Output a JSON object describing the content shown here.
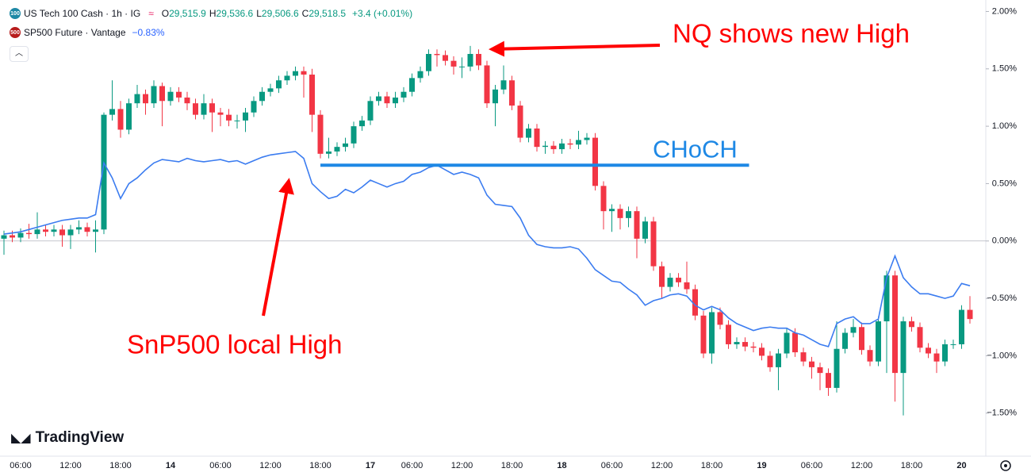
{
  "chart_data": {
    "type": "candlestick",
    "header": {
      "main": "US Tech 100 Cash · 1h · IG",
      "main_logo": "100",
      "ohlc": [
        {
          "label": "O",
          "value": "29,515.9"
        },
        {
          "label": "H",
          "value": "29,536.6"
        },
        {
          "label": "L",
          "value": "29,506.6"
        },
        {
          "label": "C",
          "value": "29,518.5"
        }
      ],
      "change": "+3.4 (+0.01%)",
      "second": "SP500 Future · Vantage",
      "second_logo": "500",
      "second_change": "−0.83%"
    },
    "brand": "TradingView",
    "annotations": [
      "NQ shows new High",
      "SnP500 local High"
    ],
    "levels": [
      {
        "text": "CHoCH",
        "value": 0.66,
        "color": "#1e88e5"
      }
    ],
    "ylim": [
      -1.875,
      2.1
    ],
    "yticks": [
      {
        "value": 2,
        "label": "2.00%"
      },
      {
        "value": 1.5,
        "label": "1.50%"
      },
      {
        "value": 1,
        "label": "1.00%"
      },
      {
        "value": 0.5,
        "label": "0.50%"
      },
      {
        "value": 0,
        "label": "0.00%"
      },
      {
        "value": -0.5,
        "label": "−0.50%"
      },
      {
        "value": -1,
        "label": "−1.00%"
      },
      {
        "value": -1.5,
        "label": "−1.50%"
      }
    ],
    "categories": [
      null,
      null,
      "06:00",
      null,
      null,
      null,
      null,
      null,
      "12:00",
      null,
      null,
      null,
      null,
      null,
      "18:00",
      null,
      null,
      null,
      null,
      null,
      "14",
      null,
      null,
      null,
      null,
      null,
      "06:00",
      null,
      null,
      null,
      null,
      null,
      "12:00",
      null,
      null,
      null,
      null,
      null,
      "18:00",
      null,
      null,
      null,
      null,
      null,
      "17",
      null,
      null,
      null,
      null,
      "06:00",
      null,
      null,
      null,
      null,
      null,
      "12:00",
      null,
      null,
      null,
      null,
      null,
      "18:00",
      null,
      null,
      null,
      null,
      null,
      "18",
      null,
      null,
      null,
      null,
      null,
      "06:00",
      null,
      null,
      null,
      null,
      null,
      "12:00",
      null,
      null,
      null,
      null,
      null,
      "18:00",
      null,
      null,
      null,
      null,
      null,
      "19",
      null,
      null,
      null,
      null,
      null,
      "06:00",
      null,
      null,
      null,
      null,
      null,
      "12:00",
      null,
      null,
      null,
      null,
      null,
      "18:00",
      null,
      null,
      null,
      null,
      null,
      "20",
      null
    ],
    "series": [
      {
        "name": "US Tech 100 Cash",
        "type": "candlestick",
        "up_color": "#089981",
        "down_color": "#f23645",
        "open": [
          0.02,
          0.05,
          0.03,
          0.07,
          0.06,
          0.1,
          0.08,
          0.1,
          0.05,
          0.1,
          0.12,
          0.08,
          0.1,
          1.1,
          1.15,
          0.97,
          1.2,
          1.28,
          1.2,
          1.35,
          1.22,
          1.3,
          1.25,
          1.2,
          1.1,
          1.2,
          1.12,
          1.1,
          1.05,
          1.05,
          1.12,
          1.22,
          1.3,
          1.33,
          1.4,
          1.44,
          1.48,
          1.45,
          1.1,
          0.76,
          0.78,
          0.82,
          0.85,
          1.0,
          1.05,
          1.22,
          1.26,
          1.2,
          1.25,
          1.3,
          1.42,
          1.48,
          1.63,
          1.62,
          1.57,
          1.52,
          1.52,
          1.63,
          1.53,
          1.2,
          1.32,
          1.4,
          1.18,
          0.9,
          0.98,
          0.82,
          0.83,
          0.8,
          0.85,
          0.84,
          0.88,
          0.9,
          0.48,
          0.26,
          0.28,
          0.2,
          0.26,
          0.02,
          0.17,
          -0.22,
          -0.4,
          -0.32,
          -0.36,
          -0.42,
          -0.65,
          -0.98,
          -0.62,
          -0.73,
          -0.9,
          -0.88,
          -0.92,
          -0.93,
          -1.0,
          -1.1,
          -0.98,
          -0.8,
          -0.97,
          -1.05,
          -1.1,
          -1.15,
          -1.28,
          -0.94,
          -0.8,
          -0.75,
          -0.95,
          -1.05,
          -0.7,
          -0.3,
          -1.15,
          -0.7,
          -0.75,
          -0.93,
          -0.98,
          -1.05,
          -0.9,
          -0.9,
          -0.6
        ],
        "high": [
          0.09,
          0.09,
          0.11,
          0.15,
          0.25,
          0.14,
          0.14,
          0.14,
          0.14,
          0.18,
          0.16,
          0.18,
          1.12,
          1.4,
          1.22,
          1.24,
          1.36,
          1.32,
          1.4,
          1.38,
          1.34,
          1.34,
          1.3,
          1.24,
          1.28,
          1.24,
          1.16,
          1.15,
          1.1,
          1.16,
          1.26,
          1.34,
          1.37,
          1.44,
          1.48,
          1.52,
          1.52,
          1.5,
          1.14,
          0.9,
          0.86,
          0.9,
          1.04,
          1.09,
          1.26,
          1.3,
          1.3,
          1.3,
          1.34,
          1.46,
          1.52,
          1.67,
          1.67,
          1.66,
          1.61,
          1.6,
          1.7,
          1.67,
          1.57,
          1.36,
          1.53,
          1.44,
          1.22,
          1.02,
          1.02,
          0.87,
          0.87,
          0.89,
          0.89,
          0.96,
          0.94,
          0.94,
          0.52,
          0.32,
          0.32,
          0.3,
          0.3,
          0.21,
          0.21,
          -0.18,
          -0.28,
          -0.28,
          -0.18,
          -0.38,
          -0.61,
          -0.58,
          -0.58,
          -0.69,
          -0.84,
          -0.84,
          -0.88,
          -0.89,
          -0.96,
          -0.94,
          -0.76,
          -0.76,
          -0.93,
          -1.01,
          -1.06,
          -1.11,
          -0.7,
          -0.76,
          -0.68,
          -0.71,
          -0.91,
          -0.66,
          -0.26,
          -0.26,
          -0.66,
          -0.66,
          -0.71,
          -0.89,
          -0.94,
          -0.86,
          -0.86,
          -0.56,
          -0.48
        ],
        "low": [
          -0.12,
          -0.01,
          -0.01,
          0.02,
          0.02,
          0.04,
          0.04,
          -0.05,
          -0.07,
          0.06,
          0.04,
          -0.1,
          0.06,
          1.05,
          0.9,
          0.93,
          1.16,
          1.1,
          1.16,
          1.0,
          1.18,
          1.21,
          1.14,
          1.06,
          1.06,
          0.95,
          1.0,
          1.0,
          0.98,
          0.95,
          1.08,
          1.18,
          1.26,
          1.29,
          1.36,
          1.4,
          1.25,
          0.95,
          0.72,
          0.72,
          0.74,
          0.78,
          0.81,
          0.96,
          1.01,
          1.18,
          1.16,
          1.16,
          1.21,
          1.26,
          1.38,
          1.44,
          1.52,
          1.53,
          1.45,
          1.42,
          1.48,
          1.49,
          1.16,
          1.0,
          1.28,
          1.14,
          0.86,
          0.86,
          0.78,
          0.76,
          0.76,
          0.76,
          0.8,
          0.8,
          0.84,
          0.44,
          0.1,
          0.08,
          0.1,
          0.12,
          -0.15,
          -0.02,
          -0.26,
          -0.5,
          -0.44,
          -0.4,
          -0.46,
          -0.69,
          -1.02,
          -1.07,
          -0.77,
          -0.94,
          -0.94,
          -0.96,
          -0.97,
          -1.04,
          -1.14,
          -1.3,
          -1.02,
          -1.01,
          -1.09,
          -1.2,
          -1.3,
          -1.35,
          -1.32,
          -0.98,
          -0.84,
          -0.99,
          -1.09,
          -1.09,
          -1.15,
          -1.4,
          -1.52,
          -0.79,
          -0.97,
          -1.02,
          -1.15,
          -1.09,
          -0.94,
          -0.94,
          -0.72
        ],
        "close": [
          0.05,
          0.03,
          0.07,
          0.06,
          0.1,
          0.08,
          0.1,
          0.05,
          0.1,
          0.12,
          0.08,
          0.1,
          1.1,
          1.15,
          0.97,
          1.2,
          1.28,
          1.2,
          1.35,
          1.22,
          1.3,
          1.25,
          1.2,
          1.1,
          1.2,
          1.12,
          1.1,
          1.05,
          1.05,
          1.12,
          1.22,
          1.3,
          1.33,
          1.4,
          1.44,
          1.48,
          1.45,
          1.1,
          0.76,
          0.78,
          0.82,
          0.85,
          1.0,
          1.05,
          1.22,
          1.26,
          1.2,
          1.25,
          1.3,
          1.42,
          1.48,
          1.63,
          1.62,
          1.57,
          1.52,
          1.52,
          1.63,
          1.53,
          1.2,
          1.32,
          1.4,
          1.18,
          0.9,
          0.98,
          0.82,
          0.83,
          0.8,
          0.85,
          0.84,
          0.88,
          0.9,
          0.48,
          0.26,
          0.28,
          0.2,
          0.26,
          0.02,
          0.17,
          -0.22,
          -0.4,
          -0.32,
          -0.36,
          -0.42,
          -0.65,
          -0.98,
          -0.62,
          -0.73,
          -0.9,
          -0.88,
          -0.92,
          -0.93,
          -1.0,
          -1.1,
          -0.98,
          -0.8,
          -0.97,
          -1.05,
          -1.1,
          -1.15,
          -1.28,
          -0.94,
          -0.8,
          -0.75,
          -0.95,
          -1.05,
          -0.7,
          -0.3,
          -1.15,
          -0.7,
          -0.75,
          -0.93,
          -0.98,
          -1.05,
          -0.9,
          -0.9,
          -0.6,
          -0.68
        ]
      },
      {
        "name": "SP500 Future",
        "type": "line",
        "color": "#3b7cf0",
        "values": [
          0.06,
          0.07,
          0.08,
          0.1,
          0.12,
          0.14,
          0.16,
          0.18,
          0.19,
          0.2,
          0.2,
          0.23,
          0.68,
          0.55,
          0.37,
          0.5,
          0.55,
          0.62,
          0.68,
          0.71,
          0.7,
          0.69,
          0.72,
          0.7,
          0.69,
          0.7,
          0.71,
          0.69,
          0.7,
          0.67,
          0.7,
          0.73,
          0.75,
          0.76,
          0.77,
          0.78,
          0.72,
          0.5,
          0.43,
          0.37,
          0.39,
          0.45,
          0.42,
          0.47,
          0.53,
          0.5,
          0.47,
          0.5,
          0.52,
          0.58,
          0.6,
          0.64,
          0.66,
          0.62,
          0.58,
          0.6,
          0.58,
          0.55,
          0.4,
          0.32,
          0.31,
          0.3,
          0.2,
          0.05,
          -0.03,
          -0.05,
          -0.06,
          -0.06,
          -0.05,
          -0.07,
          -0.15,
          -0.25,
          -0.3,
          -0.35,
          -0.36,
          -0.42,
          -0.47,
          -0.56,
          -0.52,
          -0.5,
          -0.47,
          -0.46,
          -0.48,
          -0.56,
          -0.6,
          -0.57,
          -0.6,
          -0.67,
          -0.72,
          -0.75,
          -0.78,
          -0.76,
          -0.75,
          -0.76,
          -0.76,
          -0.8,
          -0.82,
          -0.86,
          -0.9,
          -0.92,
          -0.72,
          -0.68,
          -0.66,
          -0.72,
          -0.72,
          -0.68,
          -0.32,
          -0.13,
          -0.32,
          -0.4,
          -0.46,
          -0.46,
          -0.48,
          -0.5,
          -0.48,
          -0.37,
          -0.39
        ]
      }
    ]
  }
}
